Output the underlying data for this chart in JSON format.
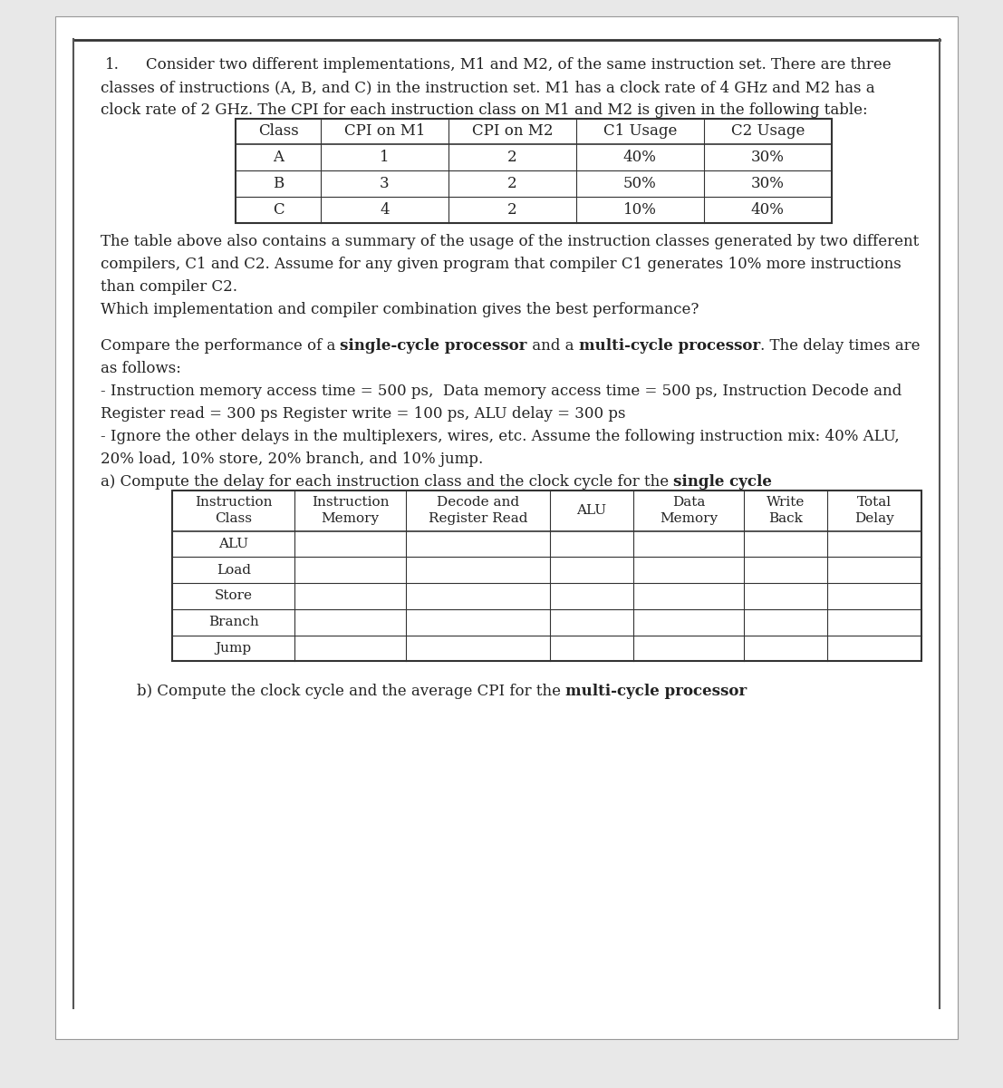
{
  "bg_color": "#e8e8e8",
  "page_bg": "#ffffff",
  "question1_number": "1.",
  "question1_text_lines": [
    "Consider two different implementations, M1 and M2, of the same instruction set. There are three",
    "classes of instructions (A, B, and C) in the instruction set. M1 has a clock rate of 4 GHz and M2 has a",
    "clock rate of 2 GHz. The CPI for each instruction class on M1 and M2 is given in the following table:"
  ],
  "table1_headers": [
    "Class",
    "CPI on M1",
    "CPI on M2",
    "C1 Usage",
    "C2 Usage"
  ],
  "table1_rows": [
    [
      "A",
      "1",
      "2",
      "40%",
      "30%"
    ],
    [
      "B",
      "3",
      "2",
      "50%",
      "30%"
    ],
    [
      "C",
      "4",
      "2",
      "10%",
      "40%"
    ]
  ],
  "para1_lines": [
    "The table above also contains a summary of the usage of the instruction classes generated by two different",
    "compilers, C1 and C2. Assume for any given program that compiler C1 generates 10% more instructions",
    "than compiler C2."
  ],
  "para1_question": "Which implementation and compiler combination gives the best performance?",
  "q2_line1_plain": "Compare the performance of a ",
  "q2_line1_bold1": "single-cycle processor",
  "q2_line1_mid": " and a ",
  "q2_line1_bold2": "multi-cycle processor",
  "q2_line1_end": ". The delay times are",
  "question2_line2": "as follows:",
  "question2_line3": "- Instruction memory access time = 500 ps,  Data memory access time = 500 ps, Instruction Decode and",
  "question2_line4": "Register read = 300 ps Register write = 100 ps, ALU delay = 300 ps",
  "question2_line5": "- Ignore the other delays in the multiplexers, wires, etc. Assume the following instruction mix: 40% ALU,",
  "question2_line6": "20% load, 10% store, 20% branch, and 10% jump.",
  "parta_plain": "a) Compute the delay for each instruction class and the clock cycle for the ",
  "parta_bold": "single cycle",
  "table2_col_headers": [
    "Instruction\nClass",
    "Instruction\nMemory",
    "Decode and\nRegister Read",
    "ALU",
    "Data\nMemory",
    "Write\nBack",
    "Total\nDelay"
  ],
  "table2_rows": [
    "ALU",
    "Load",
    "Store",
    "Branch",
    "Jump"
  ],
  "partb_plain": "b) Compute the clock cycle and the average CPI for the ",
  "partb_bold": "multi-cycle processor",
  "font_size_body": 12,
  "font_size_table1": 12,
  "font_size_table2": 11,
  "text_color": "#222222",
  "border_color": "#444444"
}
